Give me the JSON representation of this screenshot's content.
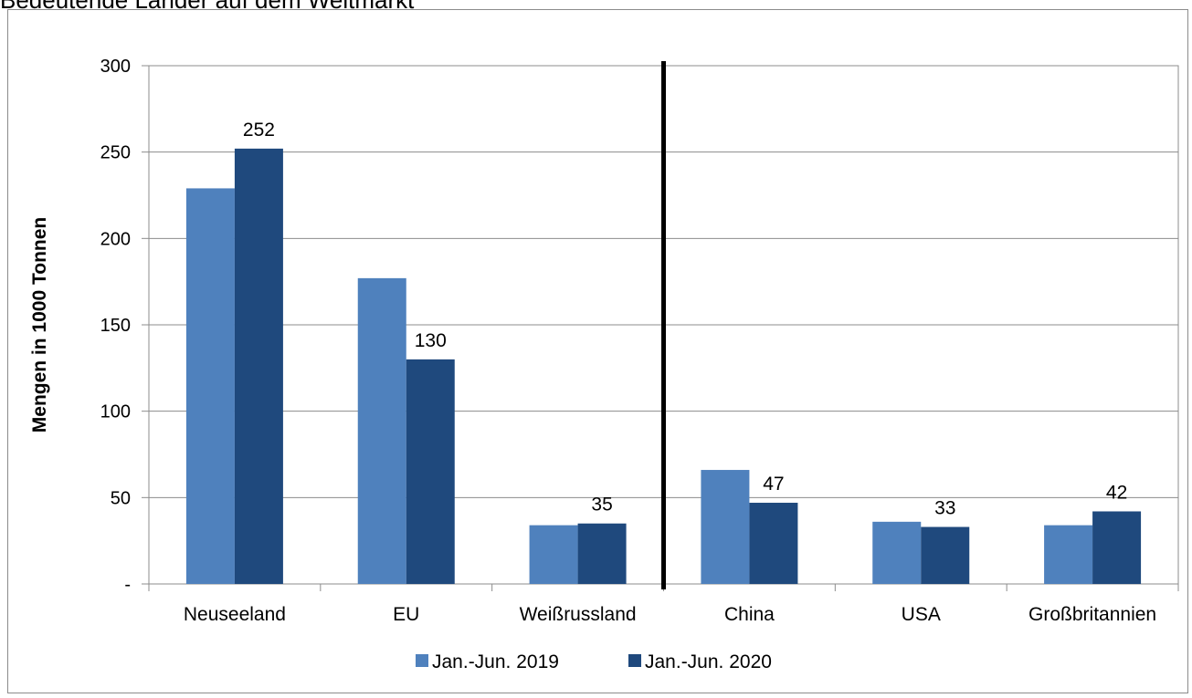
{
  "chart_data": {
    "type": "bar",
    "title": "Bedeutende Länder auf dem Weltmarkt",
    "ylabel": "Mengen in 1000 Tonnen",
    "xlabel": "",
    "ylim": [
      0,
      300
    ],
    "yticks": [
      {
        "value": 0,
        "label": "-"
      },
      {
        "value": 50,
        "label": "50"
      },
      {
        "value": 100,
        "label": "100"
      },
      {
        "value": 150,
        "label": "150"
      },
      {
        "value": 200,
        "label": "200"
      },
      {
        "value": 250,
        "label": "250"
      },
      {
        "value": 300,
        "label": "300"
      }
    ],
    "categories": [
      "Neuseeland",
      "EU",
      "Weißrussland",
      "China",
      "USA",
      "Großbritannien"
    ],
    "series": [
      {
        "name": "Jan.-Jun. 2019",
        "color": "#4f81bd",
        "values": [
          229,
          177,
          34,
          66,
          36,
          34
        ],
        "data_labels": [
          "",
          "",
          "",
          "",
          "",
          ""
        ]
      },
      {
        "name": "Jan.-Jun. 2020",
        "color": "#1f497d",
        "values": [
          252,
          130,
          35,
          47,
          33,
          42
        ],
        "data_labels": [
          "252",
          "130",
          "35",
          "47",
          "33",
          "42"
        ]
      }
    ],
    "divider_after_category": 2,
    "grid": true,
    "legend_position": "bottom"
  }
}
